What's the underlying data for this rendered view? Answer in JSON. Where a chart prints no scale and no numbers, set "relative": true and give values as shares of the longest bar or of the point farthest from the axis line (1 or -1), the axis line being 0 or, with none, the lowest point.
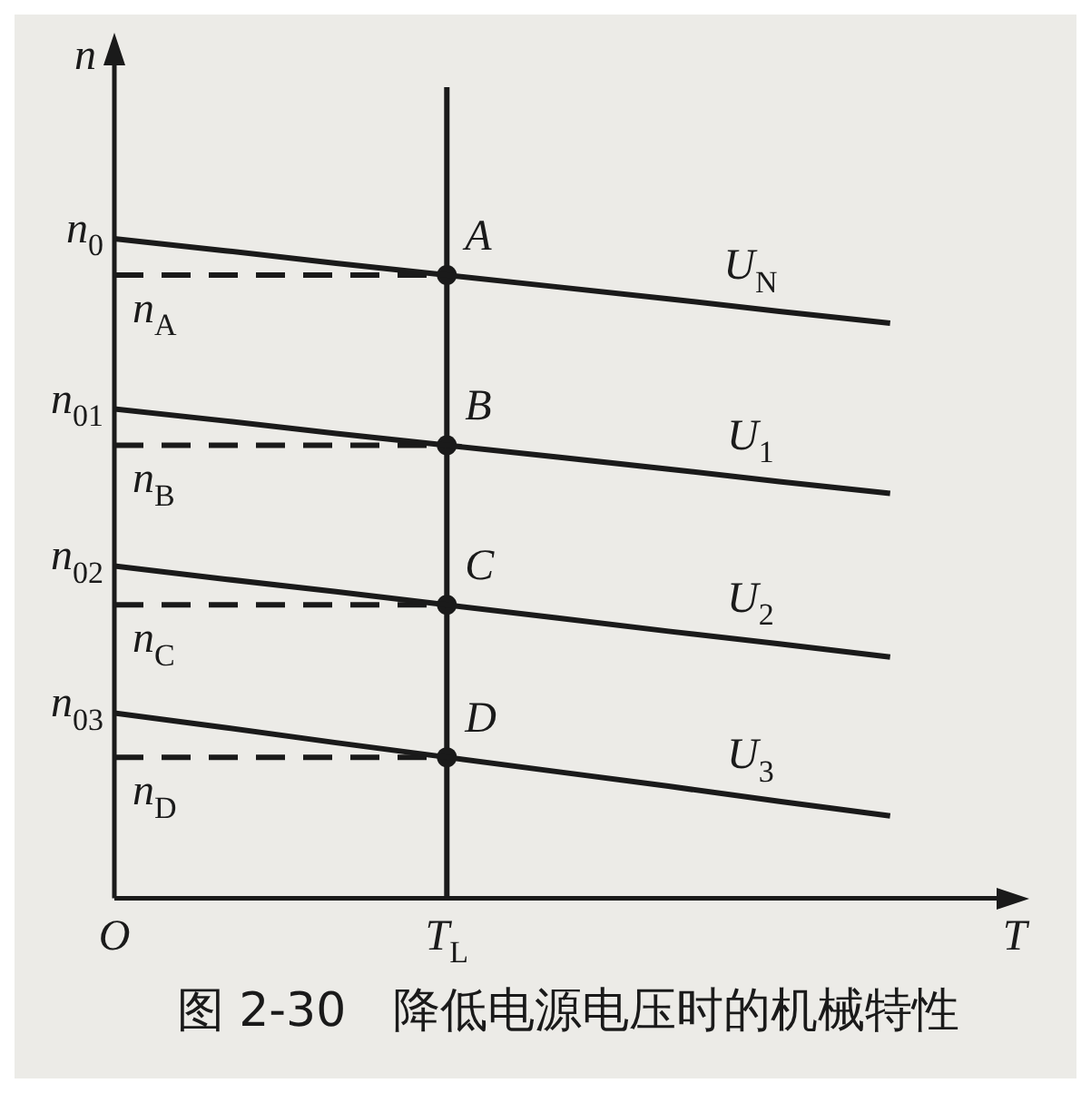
{
  "chart_data": {
    "type": "line",
    "title": "图 2-30　降低电源电压时的机械特性",
    "xlabel": "T",
    "ylabel": "n",
    "relative": true,
    "legend": false,
    "categories": [
      "O",
      null,
      null,
      "T$_{L}$",
      null,
      null,
      null,
      null
    ],
    "ref_lines": [
      {
        "axis": "x",
        "value": "T$_{L}$",
        "color": "#1a1a1a",
        "line_style": "solid"
      }
    ],
    "series": [
      {
        "name": "U$_{N}$",
        "marker": "none",
        "line_style": "solid",
        "color": "#1a1a1a",
        "values": [
          1,
          0.982,
          0.963,
          0.945,
          0.927,
          0.909,
          0.89,
          0.872
        ]
      },
      {
        "name": "U$_{1}$",
        "marker": "none",
        "line_style": "solid",
        "color": "#1a1a1a",
        "values": [
          0.742,
          0.724,
          0.705,
          0.687,
          0.669,
          0.651,
          0.632,
          0.614
        ]
      },
      {
        "name": "U$_{2}$",
        "marker": "none",
        "line_style": "solid",
        "color": "#1a1a1a",
        "values": [
          0.504,
          0.484,
          0.465,
          0.445,
          0.425,
          0.405,
          0.386,
          0.366
        ]
      },
      {
        "name": "U$_{3}$",
        "marker": "none",
        "line_style": "solid",
        "color": "#1a1a1a",
        "values": [
          0.281,
          0.259,
          0.236,
          0.214,
          0.192,
          0.17,
          0.147,
          0.125
        ]
      },
      {
        "type": "line",
        "marker": "none",
        "line_style": "dashed",
        "color": "#1a1a1a",
        "values": [
          0.945,
          0.945,
          0.945,
          0.945,
          null,
          null,
          null,
          null
        ]
      },
      {
        "type": "line",
        "marker": "none",
        "line_style": "dashed",
        "color": "#1a1a1a",
        "values": [
          0.687,
          0.687,
          0.687,
          0.687,
          null,
          null,
          null,
          null
        ]
      },
      {
        "type": "line",
        "marker": "none",
        "line_style": "dashed",
        "color": "#1a1a1a",
        "values": [
          0.445,
          0.445,
          0.445,
          0.445,
          null,
          null,
          null,
          null
        ]
      },
      {
        "type": "line",
        "marker": "none",
        "line_style": "dashed",
        "color": "#1a1a1a",
        "values": [
          0.214,
          0.214,
          0.214,
          0.214,
          null,
          null,
          null,
          null
        ]
      },
      {
        "type": "scatter",
        "marker": "circle",
        "color": "#1a1a1a",
        "x": [
          "T$_{L}$",
          "T$_{L}$",
          "T$_{L}$",
          "T$_{L}$"
        ],
        "values": [
          0.945,
          0.687,
          0.445,
          0.214
        ]
      }
    ],
    "annotations": [
      {
        "text": "n$_{0}$",
        "x": "O",
        "y": 1
      },
      {
        "text": "n$_{01}$",
        "x": "O",
        "y": 0.742
      },
      {
        "text": "n$_{02}$",
        "x": "O",
        "y": 0.504
      },
      {
        "text": "n$_{03}$",
        "x": "O",
        "y": 0.281
      },
      {
        "text": "n$_{A}$",
        "y": 0.945
      },
      {
        "text": "n$_{B}$",
        "y": 0.687
      },
      {
        "text": "n$_{C}$",
        "y": 0.445
      },
      {
        "text": "n$_{D}$",
        "y": 0.214
      },
      {
        "text": "A",
        "x": "T$_{L}$",
        "y": 0.945
      },
      {
        "text": "B",
        "x": "T$_{L}$",
        "y": 0.687
      },
      {
        "text": "C",
        "x": "T$_{L}$",
        "y": 0.445
      },
      {
        "text": "D",
        "x": "T$_{L}$",
        "y": 0.214
      }
    ]
  }
}
